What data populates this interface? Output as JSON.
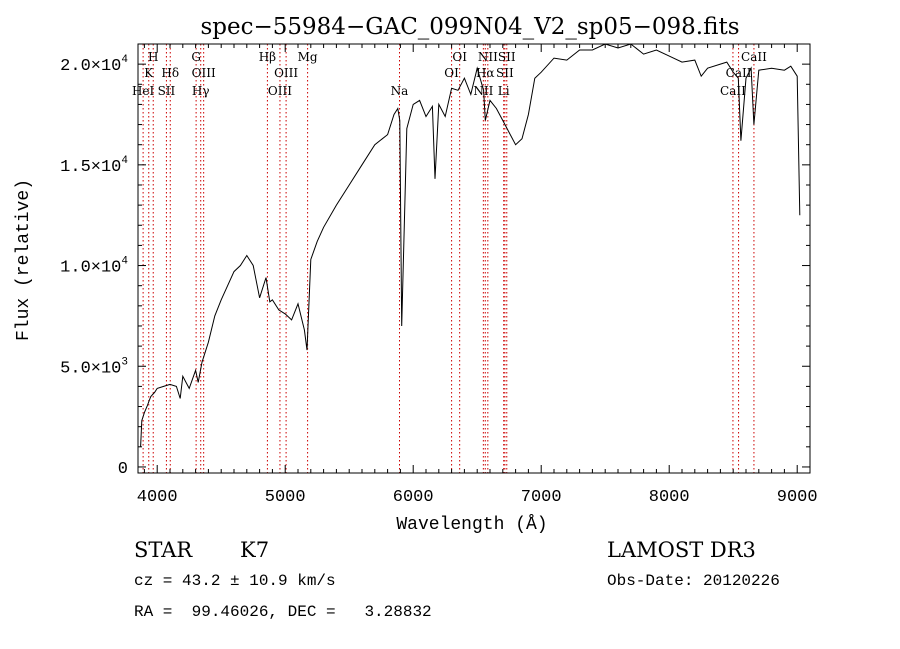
{
  "chart_data": {
    "type": "line",
    "title": "spec−55984−GAC_099N04_V2_sp05−098.fits",
    "xlabel": "Wavelength (Å)",
    "ylabel": "Flux (relative)",
    "xlim": [
      3850,
      9100
    ],
    "ylim": [
      -300,
      21000
    ],
    "x_ticks": [
      {
        "value": 4000,
        "label": "4000"
      },
      {
        "value": 5000,
        "label": "5000"
      },
      {
        "value": 6000,
        "label": "6000"
      },
      {
        "value": 7000,
        "label": "7000"
      },
      {
        "value": 8000,
        "label": "8000"
      },
      {
        "value": 9000,
        "label": "9000"
      }
    ],
    "y_ticks": [
      {
        "value": 0,
        "mant": "0",
        "exp": ""
      },
      {
        "value": 5000,
        "mant": "5.0×10",
        "exp": "3"
      },
      {
        "value": 10000,
        "mant": "1.0×10",
        "exp": "4"
      },
      {
        "value": 15000,
        "mant": "1.5×10",
        "exp": "4"
      },
      {
        "value": 20000,
        "mant": "2.0×10",
        "exp": "4"
      }
    ],
    "series": [
      {
        "name": "flux",
        "color": "#000000",
        "x": [
          3870,
          3880,
          3900,
          3920,
          3950,
          3980,
          4000,
          4050,
          4100,
          4150,
          4180,
          4200,
          4250,
          4300,
          4320,
          4350,
          4400,
          4450,
          4500,
          4550,
          4600,
          4650,
          4700,
          4750,
          4800,
          4850,
          4880,
          4900,
          4950,
          5000,
          5050,
          5100,
          5150,
          5170,
          5200,
          5250,
          5300,
          5400,
          5500,
          5600,
          5700,
          5800,
          5850,
          5880,
          5895,
          5910,
          5950,
          6000,
          6050,
          6100,
          6150,
          6170,
          6200,
          6250,
          6300,
          6350,
          6400,
          6450,
          6500,
          6550,
          6563,
          6600,
          6650,
          6700,
          6750,
          6800,
          6850,
          6900,
          6950,
          7000,
          7100,
          7200,
          7300,
          7400,
          7500,
          7600,
          7700,
          7800,
          7900,
          8000,
          8100,
          8200,
          8250,
          8300,
          8400,
          8450,
          8500,
          8540,
          8560,
          8600,
          8640,
          8662,
          8700,
          8800,
          8900,
          8950,
          9000,
          9020
        ],
        "y": [
          1000,
          2300,
          2700,
          3000,
          3500,
          3700,
          3900,
          4000,
          4100,
          4000,
          3400,
          4500,
          3900,
          4800,
          4200,
          5200,
          6200,
          7500,
          8300,
          9000,
          9700,
          10000,
          10500,
          10000,
          8400,
          9400,
          8200,
          8300,
          7800,
          7600,
          7300,
          8100,
          6800,
          5800,
          10300,
          11200,
          11900,
          13000,
          14000,
          15000,
          16000,
          16500,
          17500,
          17800,
          17200,
          7000,
          16800,
          18000,
          18200,
          17400,
          17900,
          14300,
          18000,
          17400,
          18800,
          18700,
          19300,
          18500,
          19800,
          18700,
          17200,
          18200,
          17800,
          17200,
          16600,
          16000,
          16300,
          17500,
          19300,
          19600,
          20300,
          20200,
          20700,
          20700,
          21000,
          20800,
          21000,
          20500,
          20700,
          20400,
          20100,
          20200,
          19400,
          19800,
          20000,
          20100,
          19600,
          19300,
          16200,
          19300,
          19800,
          17000,
          19700,
          19800,
          19700,
          19900,
          19400,
          12500
        ]
      }
    ],
    "lines": [
      {
        "wl": 3890,
        "label": "HeI",
        "row": 2
      },
      {
        "wl": 3934,
        "label": "K",
        "row": 1
      },
      {
        "wl": 3969,
        "label": "H",
        "row": 0
      },
      {
        "wl": 4072,
        "label": "SII",
        "row": 2
      },
      {
        "wl": 4102,
        "label": "Hδ",
        "row": 1
      },
      {
        "wl": 4304,
        "label": "G",
        "row": 0
      },
      {
        "wl": 4340,
        "label": "Hγ",
        "row": 2
      },
      {
        "wl": 4363,
        "label": "OIII",
        "row": 1
      },
      {
        "wl": 4861,
        "label": "Hβ",
        "row": 0
      },
      {
        "wl": 4959,
        "label": "OIII",
        "row": 2
      },
      {
        "wl": 5007,
        "label": "OIII",
        "row": 1
      },
      {
        "wl": 5175,
        "label": "Mg",
        "row": 0
      },
      {
        "wl": 5893,
        "label": "Na",
        "row": 2
      },
      {
        "wl": 6300,
        "label": "OI",
        "row": 1
      },
      {
        "wl": 6363,
        "label": "OI",
        "row": 0
      },
      {
        "wl": 6548,
        "label": "NII",
        "row": 2
      },
      {
        "wl": 6563,
        "label": "Hα",
        "row": 1
      },
      {
        "wl": 6583,
        "label": "NII",
        "row": 0
      },
      {
        "wl": 6707,
        "label": "Li",
        "row": 2
      },
      {
        "wl": 6716,
        "label": "SII",
        "row": 1
      },
      {
        "wl": 6731,
        "label": "SII",
        "row": 0
      },
      {
        "wl": 8498,
        "label": "CaII",
        "row": 2
      },
      {
        "wl": 8542,
        "label": "CaII",
        "row": 1
      },
      {
        "wl": 8662,
        "label": "CaII",
        "row": 0
      }
    ]
  },
  "info": {
    "object_class": "STAR",
    "subclass": "K7",
    "cz": "cz = 43.2 ± 10.9 km/s",
    "coords": "RA =  99.46026, DEC =   3.28832",
    "survey": "LAMOST DR3",
    "obs_date": "Obs-Date: 20120226"
  },
  "colors": {
    "line_marker": "#cc0000",
    "spectrum": "#000000",
    "axis": "#000000"
  }
}
